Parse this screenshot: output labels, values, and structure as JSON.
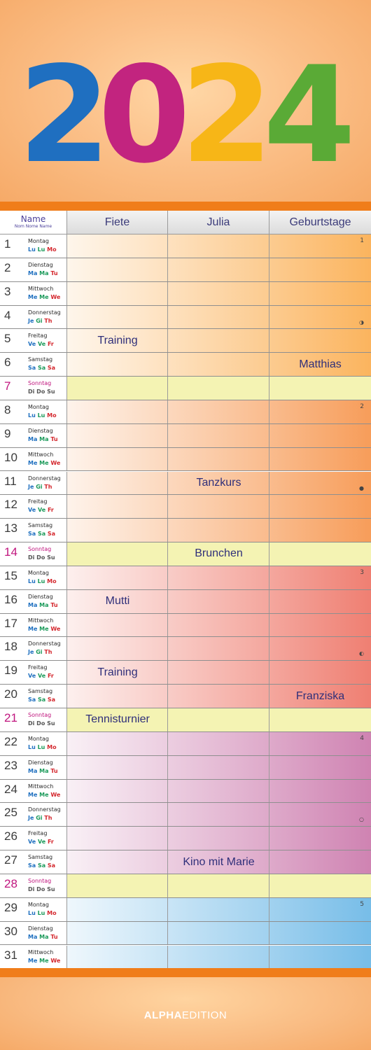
{
  "year": "2024",
  "year_colors": [
    "#1f6fc0",
    "#c2247f",
    "#f7b617",
    "#5aaa36"
  ],
  "brand": {
    "bold": "ALPHA",
    "light": "EDITION"
  },
  "header": {
    "name_label": "Name",
    "name_sub": "Nom Nome Name",
    "columns": [
      "Fiete",
      "Julia",
      "Geburtstage"
    ]
  },
  "days": [
    {
      "n": "1",
      "day": "Montag",
      "abbr": [
        "Lu",
        "Lu",
        "Mo"
      ],
      "week": "1"
    },
    {
      "n": "2",
      "day": "Dienstag",
      "abbr": [
        "Ma",
        "Ma",
        "Tu"
      ]
    },
    {
      "n": "3",
      "day": "Mittwoch",
      "abbr": [
        "Me",
        "Me",
        "We"
      ]
    },
    {
      "n": "4",
      "day": "Donnerstag",
      "abbr": [
        "Je",
        "Gi",
        "Th"
      ],
      "moon": "◑"
    },
    {
      "n": "5",
      "day": "Freitag",
      "abbr": [
        "Ve",
        "Ve",
        "Fr"
      ],
      "entries": [
        "Training",
        "",
        ""
      ]
    },
    {
      "n": "6",
      "day": "Samstag",
      "abbr": [
        "Sa",
        "Sa",
        "Sa"
      ],
      "entries": [
        "",
        "",
        "Matthias"
      ]
    },
    {
      "n": "7",
      "day": "Sonntag",
      "abbr": [
        "Di",
        "Do",
        "Su"
      ],
      "sunday": true
    },
    {
      "n": "8",
      "day": "Montag",
      "abbr": [
        "Lu",
        "Lu",
        "Mo"
      ],
      "week": "2"
    },
    {
      "n": "9",
      "day": "Dienstag",
      "abbr": [
        "Ma",
        "Ma",
        "Tu"
      ]
    },
    {
      "n": "10",
      "day": "Mittwoch",
      "abbr": [
        "Me",
        "Me",
        "We"
      ]
    },
    {
      "n": "11",
      "day": "Donnerstag",
      "abbr": [
        "Je",
        "Gi",
        "Th"
      ],
      "entries": [
        "",
        "Tanzkurs",
        ""
      ],
      "moon": "●"
    },
    {
      "n": "12",
      "day": "Freitag",
      "abbr": [
        "Ve",
        "Ve",
        "Fr"
      ]
    },
    {
      "n": "13",
      "day": "Samstag",
      "abbr": [
        "Sa",
        "Sa",
        "Sa"
      ]
    },
    {
      "n": "14",
      "day": "Sonntag",
      "abbr": [
        "Di",
        "Do",
        "Su"
      ],
      "sunday": true,
      "entries": [
        "",
        "Brunchen",
        ""
      ]
    },
    {
      "n": "15",
      "day": "Montag",
      "abbr": [
        "Lu",
        "Lu",
        "Mo"
      ],
      "week": "3"
    },
    {
      "n": "16",
      "day": "Dienstag",
      "abbr": [
        "Ma",
        "Ma",
        "Tu"
      ],
      "entries": [
        "Mutti",
        "",
        ""
      ]
    },
    {
      "n": "17",
      "day": "Mittwoch",
      "abbr": [
        "Me",
        "Me",
        "We"
      ]
    },
    {
      "n": "18",
      "day": "Donnerstag",
      "abbr": [
        "Je",
        "Gi",
        "Th"
      ],
      "moon": "◐"
    },
    {
      "n": "19",
      "day": "Freitag",
      "abbr": [
        "Ve",
        "Ve",
        "Fr"
      ],
      "entries": [
        "Training",
        "",
        ""
      ]
    },
    {
      "n": "20",
      "day": "Samstag",
      "abbr": [
        "Sa",
        "Sa",
        "Sa"
      ],
      "entries": [
        "",
        "",
        "Franziska"
      ]
    },
    {
      "n": "21",
      "day": "Sonntag",
      "abbr": [
        "Di",
        "Do",
        "Su"
      ],
      "sunday": true,
      "entries": [
        "Tennisturnier",
        "",
        ""
      ]
    },
    {
      "n": "22",
      "day": "Montag",
      "abbr": [
        "Lu",
        "Lu",
        "Mo"
      ],
      "week": "4"
    },
    {
      "n": "23",
      "day": "Dienstag",
      "abbr": [
        "Ma",
        "Ma",
        "Tu"
      ]
    },
    {
      "n": "24",
      "day": "Mittwoch",
      "abbr": [
        "Me",
        "Me",
        "We"
      ]
    },
    {
      "n": "25",
      "day": "Donnerstag",
      "abbr": [
        "Je",
        "Gi",
        "Th"
      ],
      "moon": "○"
    },
    {
      "n": "26",
      "day": "Freitag",
      "abbr": [
        "Ve",
        "Ve",
        "Fr"
      ]
    },
    {
      "n": "27",
      "day": "Samstag",
      "abbr": [
        "Sa",
        "Sa",
        "Sa"
      ],
      "entries": [
        "",
        "Kino mit Marie",
        ""
      ]
    },
    {
      "n": "28",
      "day": "Sonntag",
      "abbr": [
        "Di",
        "Do",
        "Su"
      ],
      "sunday": true
    },
    {
      "n": "29",
      "day": "Montag",
      "abbr": [
        "Lu",
        "Lu",
        "Mo"
      ],
      "week": "5"
    },
    {
      "n": "30",
      "day": "Dienstag",
      "abbr": [
        "Ma",
        "Ma",
        "Tu"
      ]
    },
    {
      "n": "31",
      "day": "Mittwoch",
      "abbr": [
        "Me",
        "Me",
        "We"
      ]
    }
  ],
  "week_colors": [
    "#fbb45e",
    "#f79d5a",
    "#ef7f72",
    "#cf83b2",
    "#77bde8"
  ],
  "sunday_color": "#f4f3b3"
}
